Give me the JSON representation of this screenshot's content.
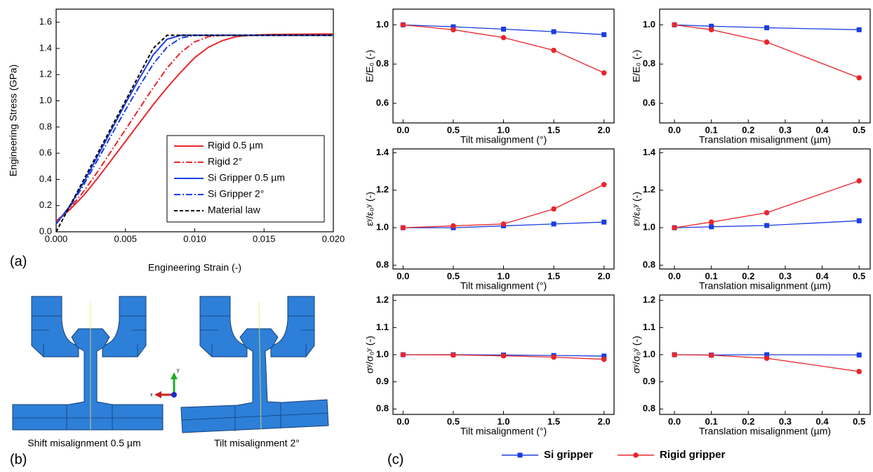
{
  "chart_data": [
    {
      "type": "line",
      "xlabel": "Engineering Strain  (-)",
      "ylabel": "Engineering Stress (GPa)",
      "x": [
        0,
        0.001,
        0.002,
        0.003,
        0.004,
        0.005,
        0.006,
        0.007,
        0.008,
        0.009,
        0.01,
        0.011,
        0.012,
        0.013,
        0.014,
        0.015,
        0.016,
        0.017,
        0.018,
        0.019,
        0.02
      ],
      "xlim": [
        0,
        0.02
      ],
      "ylim": [
        0,
        1.7
      ],
      "xticks": [
        {
          "value": 0,
          "label": "0.000"
        },
        0.005,
        {
          "value": 0.01,
          "label": "0.010"
        },
        0.015,
        {
          "value": 0.02,
          "label": "0.020"
        }
      ],
      "yticks": [
        {
          "value": 0,
          "label": "0.0"
        },
        0.2,
        0.4,
        0.6,
        0.8,
        {
          "value": 1,
          "label": "1.0"
        },
        1.2,
        1.4,
        1.6
      ],
      "legend": "lower right",
      "series": [
        {
          "name": "Rigid 0.5 µm",
          "color": "#e8262b",
          "dash": "solid",
          "values": [
            0.08,
            0.17,
            0.28,
            0.41,
            0.55,
            0.69,
            0.83,
            0.97,
            1.1,
            1.22,
            1.33,
            1.41,
            1.46,
            1.49,
            1.5,
            1.505,
            1.507,
            1.508,
            1.509,
            1.51,
            1.51
          ]
        },
        {
          "name": "Rigid 2°",
          "color": "#e8262b",
          "dash": "dashdot",
          "values": [
            0.08,
            0.18,
            0.31,
            0.46,
            0.62,
            0.78,
            0.94,
            1.1,
            1.25,
            1.37,
            1.45,
            1.49,
            1.5,
            1.5,
            1.5,
            1.5,
            1.5,
            1.5,
            1.5,
            1.5,
            1.5
          ]
        },
        {
          "name": "Si Gripper 0.5 µm",
          "color": "#1a3de0",
          "dash": "solid",
          "values": [
            0.06,
            0.2,
            0.38,
            0.58,
            0.78,
            0.98,
            1.17,
            1.35,
            1.47,
            1.5,
            1.5,
            1.5,
            1.5,
            1.5,
            1.5,
            1.5,
            1.5,
            1.5,
            1.5,
            1.5,
            1.5
          ]
        },
        {
          "name": "Si Gripper 2°",
          "color": "#1a3de0",
          "dash": "dashdot",
          "values": [
            0.06,
            0.19,
            0.36,
            0.55,
            0.74,
            0.93,
            1.11,
            1.28,
            1.41,
            1.48,
            1.5,
            1.5,
            1.5,
            1.5,
            1.5,
            1.5,
            1.5,
            1.5,
            1.5,
            1.5,
            1.5
          ]
        },
        {
          "name": "Material law",
          "color": "#000000",
          "dash": "dash",
          "values": [
            0,
            0.2,
            0.4,
            0.6,
            0.8,
            1.0,
            1.2,
            1.4,
            1.5,
            1.5,
            1.5,
            1.5,
            1.5,
            1.5,
            1.5,
            1.5,
            1.5,
            1.5,
            1.5,
            1.5,
            1.5
          ]
        }
      ]
    },
    {
      "type": "line",
      "xlabel": "Tilt misalignment (°)",
      "ylabel": "E/E₀ (-)",
      "x": [
        0,
        0.5,
        1,
        1.5,
        2
      ],
      "xlim": [
        -0.1,
        2.1
      ],
      "ylim": [
        0.5,
        1.08
      ],
      "xticks": [
        {
          "value": 0,
          "label": "0.0"
        },
        0.5,
        {
          "value": 1,
          "label": "1.0"
        },
        1.5,
        {
          "value": 2,
          "label": "2.0"
        }
      ],
      "yticks": [
        0.6,
        0.8,
        {
          "value": 1,
          "label": "1.0"
        }
      ],
      "series": [
        {
          "color": "#1a3de0",
          "marker": "square",
          "values": [
            1.0,
            0.99,
            0.978,
            0.965,
            0.95
          ]
        },
        {
          "color": "#e8262b",
          "marker": "circle",
          "values": [
            1.0,
            0.975,
            0.935,
            0.87,
            0.755
          ]
        }
      ]
    },
    {
      "type": "line",
      "xlabel": "Translation misalignment (µm)",
      "ylabel": "E/E₀ (-)",
      "x": [
        0,
        0.1,
        0.25,
        0.5
      ],
      "xlim": [
        -0.04,
        0.53
      ],
      "ylim": [
        0.5,
        1.08
      ],
      "xticks": [
        {
          "value": 0,
          "label": "0.0"
        },
        0.1,
        0.2,
        0.3,
        0.4,
        0.5
      ],
      "yticks": [
        0.6,
        0.8,
        {
          "value": 1,
          "label": "1.0"
        }
      ],
      "series": [
        {
          "color": "#1a3de0",
          "marker": "square",
          "values": [
            1.0,
            0.993,
            0.985,
            0.975
          ]
        },
        {
          "color": "#e8262b",
          "marker": "circle",
          "values": [
            1.0,
            0.975,
            0.912,
            0.73
          ]
        }
      ]
    },
    {
      "type": "line",
      "xlabel": "Tilt misalignment (°)",
      "ylabel": "εʸ/ε₀ʸ (-)",
      "x": [
        0,
        0.5,
        1,
        1.5,
        2
      ],
      "xlim": [
        -0.1,
        2.1
      ],
      "ylim": [
        0.78,
        1.42
      ],
      "xticks": [
        {
          "value": 0,
          "label": "0.0"
        },
        0.5,
        {
          "value": 1,
          "label": "1.0"
        },
        1.5,
        {
          "value": 2,
          "label": "2.0"
        }
      ],
      "yticks": [
        0.8,
        {
          "value": 1,
          "label": "1.0"
        },
        1.2,
        1.4
      ],
      "series": [
        {
          "color": "#1a3de0",
          "marker": "square",
          "values": [
            1.0,
            1.0,
            1.01,
            1.02,
            1.03
          ]
        },
        {
          "color": "#e8262b",
          "marker": "circle",
          "values": [
            1.0,
            1.01,
            1.02,
            1.1,
            1.23
          ]
        }
      ]
    },
    {
      "type": "line",
      "xlabel": "Translation misalignment (µm)",
      "ylabel": "εʸ/ε₀ʸ (-)",
      "x": [
        0,
        0.1,
        0.25,
        0.5
      ],
      "xlim": [
        -0.04,
        0.53
      ],
      "ylim": [
        0.78,
        1.42
      ],
      "xticks": [
        {
          "value": 0,
          "label": "0.0"
        },
        0.1,
        0.2,
        0.3,
        0.4,
        0.5
      ],
      "yticks": [
        0.8,
        {
          "value": 1,
          "label": "1.0"
        },
        1.2,
        1.4
      ],
      "series": [
        {
          "color": "#1a3de0",
          "marker": "square",
          "values": [
            1.0,
            1.005,
            1.012,
            1.037
          ]
        },
        {
          "color": "#e8262b",
          "marker": "circle",
          "values": [
            1.0,
            1.03,
            1.08,
            1.25
          ]
        }
      ]
    },
    {
      "type": "line",
      "xlabel": "Tilt misalignment (°)",
      "ylabel": "σʸ/σ₀ʸ (-)",
      "x": [
        0,
        0.5,
        1,
        1.5,
        2
      ],
      "xlim": [
        -0.1,
        2.1
      ],
      "ylim": [
        0.78,
        1.22
      ],
      "xticks": [
        {
          "value": 0,
          "label": "0.0"
        },
        0.5,
        {
          "value": 1,
          "label": "1.0"
        },
        1.5,
        {
          "value": 2,
          "label": "2.0"
        }
      ],
      "yticks": [
        0.8,
        0.9,
        {
          "value": 1,
          "label": "1.0"
        },
        1.1,
        1.2
      ],
      "series": [
        {
          "color": "#1a3de0",
          "marker": "square",
          "values": [
            1.0,
            1.0,
            0.999,
            0.997,
            0.995
          ]
        },
        {
          "color": "#e8262b",
          "marker": "circle",
          "values": [
            1.0,
            0.999,
            0.996,
            0.991,
            0.983
          ]
        }
      ]
    },
    {
      "type": "line",
      "xlabel": "Translation misalignment (µm)",
      "ylabel": "σʸ/σ₀ʸ (-)",
      "x": [
        0,
        0.1,
        0.25,
        0.5
      ],
      "xlim": [
        -0.04,
        0.53
      ],
      "ylim": [
        0.78,
        1.22
      ],
      "xticks": [
        {
          "value": 0,
          "label": "0.0"
        },
        0.1,
        0.2,
        0.3,
        0.4,
        0.5
      ],
      "yticks": [
        0.8,
        0.9,
        {
          "value": 1,
          "label": "1.0"
        },
        1.1,
        1.2
      ],
      "series": [
        {
          "color": "#1a3de0",
          "marker": "square",
          "values": [
            1.0,
            0.999,
            1.0,
            0.999
          ]
        },
        {
          "color": "#e8262b",
          "marker": "circle",
          "values": [
            1.0,
            0.998,
            0.987,
            0.938
          ]
        }
      ]
    }
  ],
  "legend": [
    {
      "name": "Si gripper",
      "color": "#1a3de0",
      "marker": "square"
    },
    {
      "name": "Rigid gripper",
      "color": "#e8262b",
      "marker": "circle"
    }
  ],
  "panel_labels": [
    "(a)",
    "(b)",
    "(c)"
  ],
  "diagram": {
    "captions": [
      "Shift misalignment 0.5 µm",
      "Tilt misalignment 2°"
    ],
    "axis_labels": [
      "x",
      "y"
    ]
  }
}
